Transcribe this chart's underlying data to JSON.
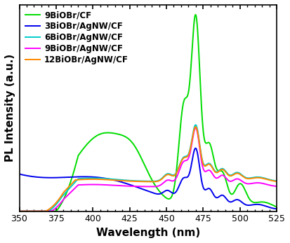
{
  "title": "",
  "xlabel": "Wavelength (nm)",
  "ylabel": "PL Intensity (a.u.)",
  "xlim": [
    350,
    525
  ],
  "xticklabels": [
    350,
    375,
    400,
    425,
    450,
    475,
    500,
    525
  ],
  "series": [
    {
      "label": "9BiOBr/CF",
      "color": "#00dd00"
    },
    {
      "label": "3BiOBr/AgNW/CF",
      "color": "#0000ee"
    },
    {
      "label": "6BiOBr/AgNW/CF",
      "color": "#00cccc"
    },
    {
      "label": "9BiOBr/AgNW/CF",
      "color": "#ff00ff"
    },
    {
      "label": "12BiOBr/AgNW/CF",
      "color": "#ff8800"
    }
  ],
  "background_color": "#ffffff",
  "legend_fontsize": 8.5,
  "axis_fontsize": 11
}
